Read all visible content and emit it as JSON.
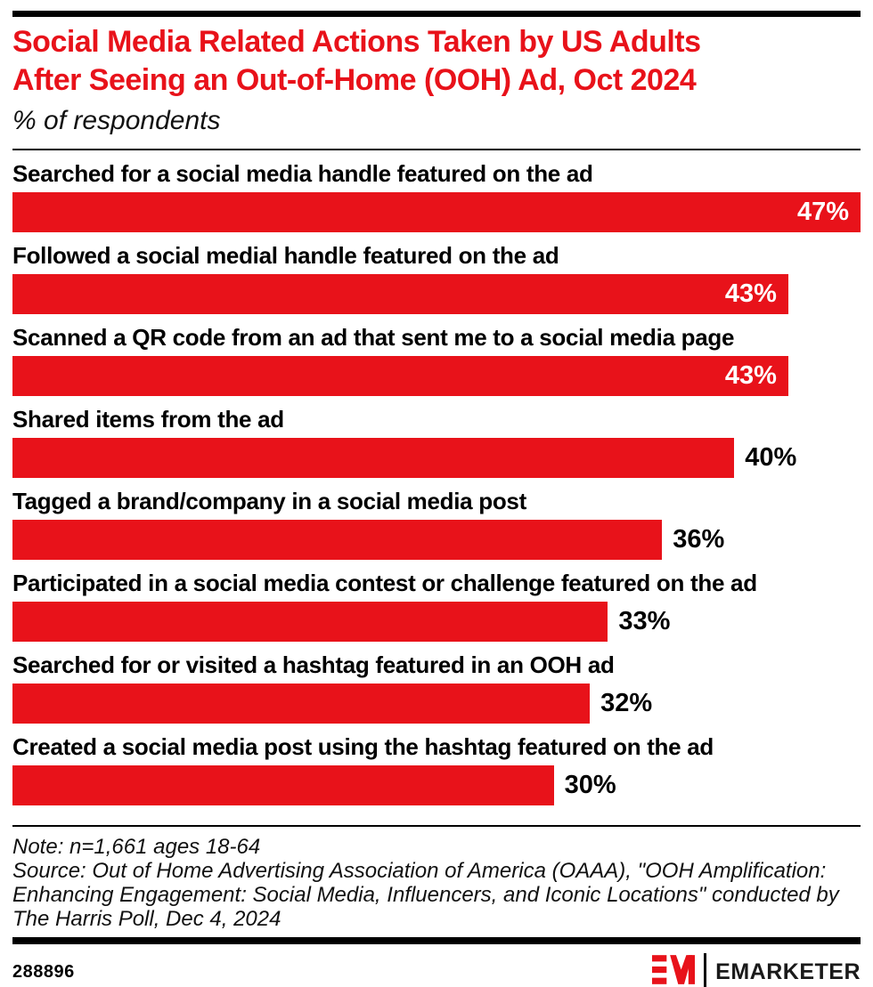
{
  "page": {
    "title_lines": [
      "Social Media Related Actions Taken by US Adults",
      "After Seeing an Out-of-Home (OOH) Ad, Oct 2024"
    ],
    "subtitle": "% of respondents",
    "note": "Note: n=1,661 ages 18-64",
    "source": "Source: Out of Home Advertising Association of America (OAAA), \"OOH Amplification: Enhancing Engagement: Social Media, Influencers, and Iconic Locations\" conducted by The Harris Poll, Dec 4, 2024",
    "chart_id": "288896",
    "brand_name": "EMARKETER"
  },
  "colors": {
    "accent_red": "#e8121a",
    "bar_red": "#e8121a",
    "rule_black": "#000000"
  },
  "chart_data": {
    "type": "bar",
    "orientation": "horizontal",
    "title": "Social Media Related Actions Taken by US Adults After Seeing an Out-of-Home (OOH) Ad, Oct 2024",
    "subtitle": "% of respondents",
    "unit": "%",
    "xlim": [
      0,
      47
    ],
    "grid": false,
    "legend": false,
    "bar_color": "#e8121a",
    "value_label_format": "{v}%",
    "categories": [
      "Searched for a social media handle featured on the ad",
      "Followed a social medial handle featured on the ad",
      "Scanned a QR code from an ad that sent me to a social media page",
      "Shared items from the ad",
      "Tagged a brand/company in a social media post",
      "Participated in a social media contest or challenge featured on the ad",
      "Searched for or visited a hashtag featured in an OOH ad",
      "Created a social media post using the hashtag featured on the ad"
    ],
    "values": [
      47,
      43,
      43,
      40,
      36,
      33,
      32,
      30
    ],
    "labels_inside": [
      true,
      true,
      true,
      false,
      false,
      false,
      false,
      false
    ]
  }
}
